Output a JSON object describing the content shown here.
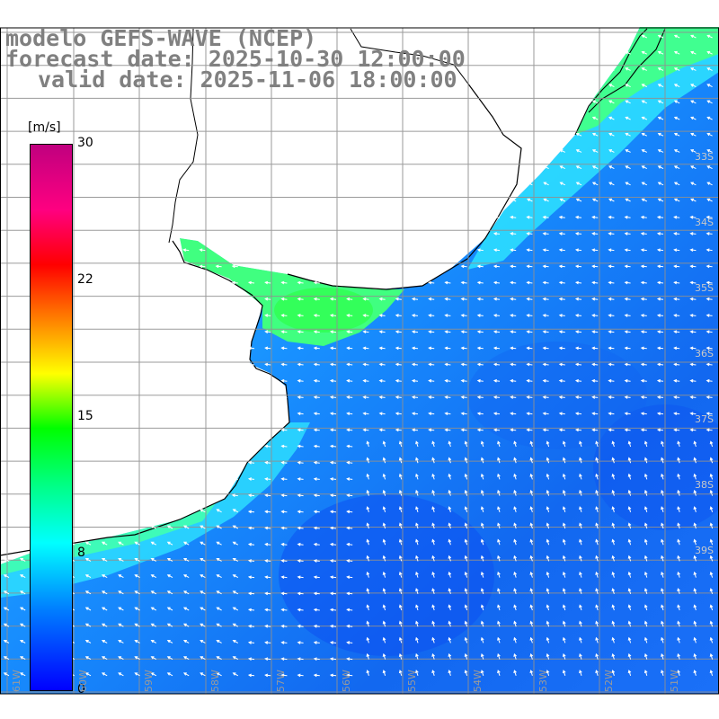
{
  "header": {
    "model": "modelo GEFS-WAVE (NCEP)",
    "forecast": "forecast date: 2025-10-30 12:00:00",
    "valid": "valid date: 2025-11-06 18:00:00"
  },
  "colorbar": {
    "unit": "[m/s]",
    "ticks": [
      "30",
      "22",
      "15",
      "8",
      "0"
    ],
    "colors": [
      "#0000ff",
      "#0080ff",
      "#00ffff",
      "#00ff80",
      "#00ff00",
      "#ffff00",
      "#ff8000",
      "#ff0000",
      "#ff0080",
      "#c0007f"
    ]
  },
  "map": {
    "lon_labels": [
      "61W",
      "60W",
      "59W",
      "58W",
      "57W",
      "56W",
      "55W",
      "54W",
      "53W",
      "52W",
      "51W"
    ],
    "lat_labels": [
      "33S",
      "34S",
      "35S",
      "36S",
      "37S",
      "38S",
      "39S"
    ],
    "colors": {
      "sea_deep": "#1060f0",
      "sea_mid": "#20a0ff",
      "sea_light": "#30e0ff",
      "sea_green": "#40ff80",
      "land": "#ffffff",
      "coastline": "#000000",
      "grid": "#909090",
      "arrows": "#ffffff"
    }
  }
}
